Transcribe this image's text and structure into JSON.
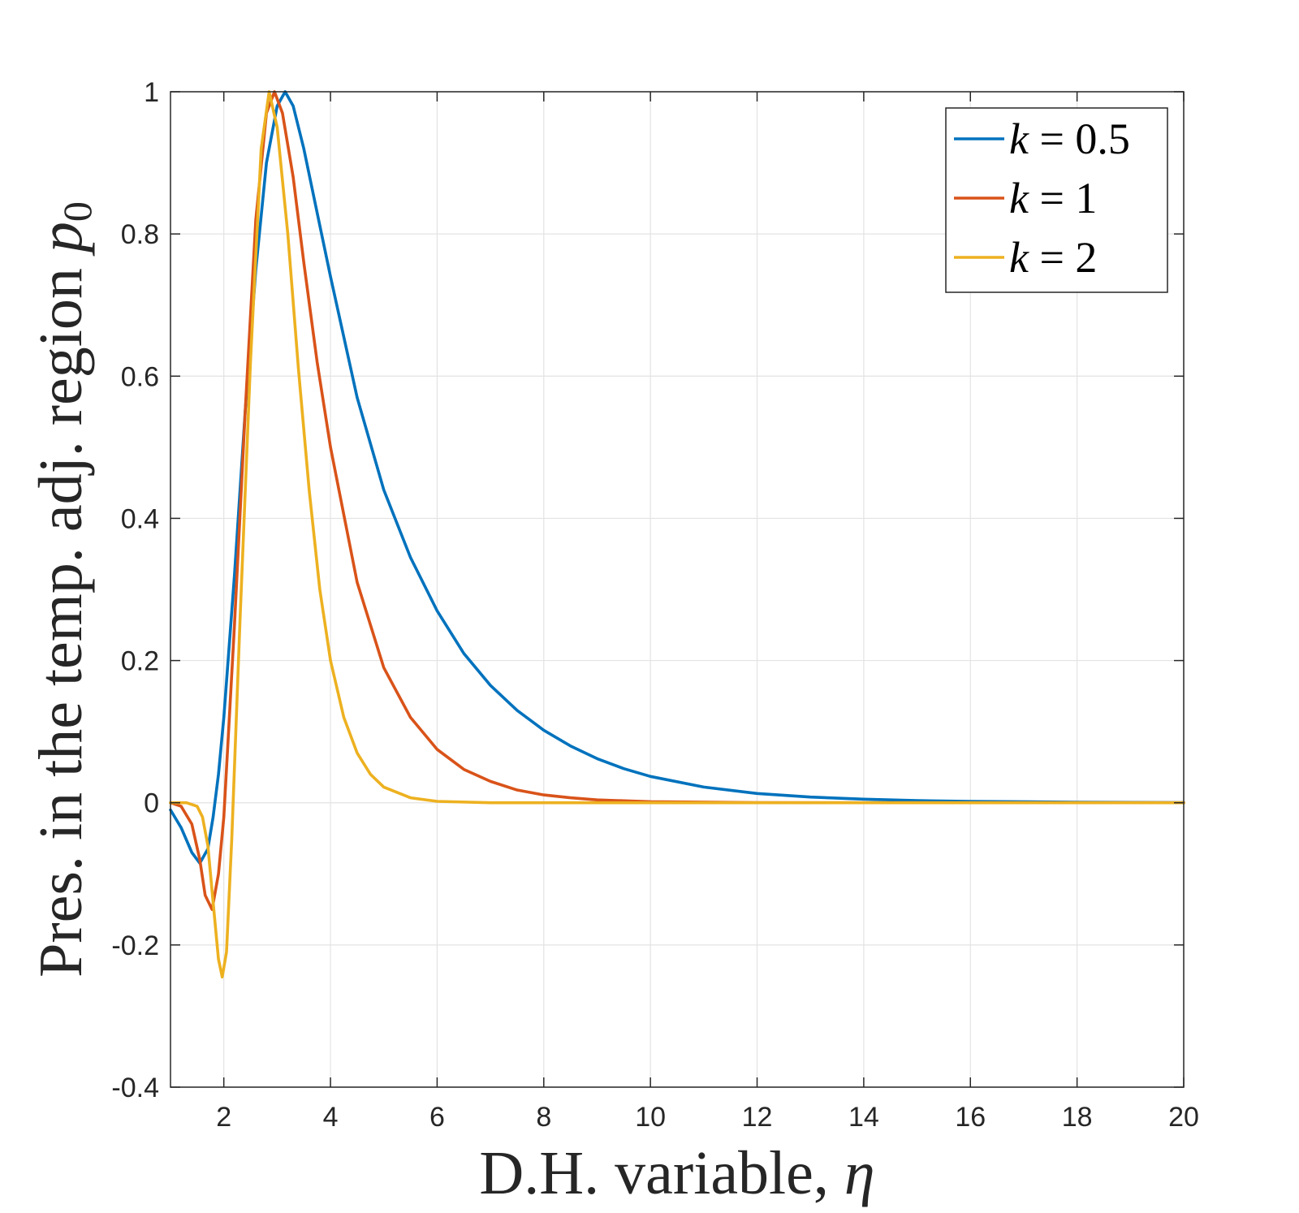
{
  "chart_data": {
    "type": "line",
    "title": "",
    "xlabel_text": "D.H. variable, ",
    "xlabel_symbol": "η",
    "ylabel_text": "Pres. in the temp. adj. region ",
    "ylabel_symbol": "p",
    "ylabel_subscript": "0",
    "xlim": [
      1,
      20
    ],
    "ylim": [
      -0.4,
      1
    ],
    "xticks": [
      2,
      4,
      6,
      8,
      10,
      12,
      14,
      16,
      18,
      20
    ],
    "xtick_labels": [
      "2",
      "4",
      "6",
      "8",
      "10",
      "12",
      "14",
      "16",
      "18",
      "20"
    ],
    "yticks": [
      -0.4,
      -0.2,
      0,
      0.2,
      0.4,
      0.6,
      0.8,
      1
    ],
    "ytick_labels": [
      "-0.4",
      "-0.2",
      "0",
      "0.2",
      "0.4",
      "0.6",
      "0.8",
      "1"
    ],
    "grid": true,
    "legend_position": "top-right",
    "series": [
      {
        "name": "k = 0.5",
        "legend_var": "k",
        "legend_rest": " = 0.5",
        "color": "#0072BD",
        "points": [
          [
            1.0,
            -0.01
          ],
          [
            1.2,
            -0.035
          ],
          [
            1.4,
            -0.07
          ],
          [
            1.55,
            -0.085
          ],
          [
            1.7,
            -0.065
          ],
          [
            1.8,
            -0.02
          ],
          [
            1.9,
            0.04
          ],
          [
            2.0,
            0.12
          ],
          [
            2.2,
            0.32
          ],
          [
            2.4,
            0.55
          ],
          [
            2.6,
            0.75
          ],
          [
            2.8,
            0.9
          ],
          [
            3.0,
            0.98
          ],
          [
            3.15,
            1.0
          ],
          [
            3.3,
            0.98
          ],
          [
            3.5,
            0.92
          ],
          [
            3.75,
            0.83
          ],
          [
            4.0,
            0.74
          ],
          [
            4.5,
            0.57
          ],
          [
            5.0,
            0.44
          ],
          [
            5.5,
            0.345
          ],
          [
            6.0,
            0.27
          ],
          [
            6.5,
            0.21
          ],
          [
            7.0,
            0.165
          ],
          [
            7.5,
            0.13
          ],
          [
            8.0,
            0.102
          ],
          [
            8.5,
            0.08
          ],
          [
            9.0,
            0.062
          ],
          [
            9.5,
            0.048
          ],
          [
            10.0,
            0.037
          ],
          [
            11.0,
            0.022
          ],
          [
            12.0,
            0.013
          ],
          [
            13.0,
            0.008
          ],
          [
            14.0,
            0.005
          ],
          [
            15.0,
            0.003
          ],
          [
            16.0,
            0.002
          ],
          [
            18.0,
            0.0008
          ],
          [
            20.0,
            0.0003
          ]
        ]
      },
      {
        "name": "k = 1",
        "legend_var": "k",
        "legend_rest": " = 1",
        "color": "#D95319",
        "points": [
          [
            1.0,
            0.0
          ],
          [
            1.2,
            -0.005
          ],
          [
            1.4,
            -0.03
          ],
          [
            1.55,
            -0.08
          ],
          [
            1.65,
            -0.13
          ],
          [
            1.78,
            -0.15
          ],
          [
            1.9,
            -0.1
          ],
          [
            2.0,
            -0.02
          ],
          [
            2.2,
            0.25
          ],
          [
            2.4,
            0.55
          ],
          [
            2.6,
            0.82
          ],
          [
            2.8,
            0.97
          ],
          [
            2.95,
            1.0
          ],
          [
            3.1,
            0.97
          ],
          [
            3.3,
            0.88
          ],
          [
            3.5,
            0.76
          ],
          [
            3.75,
            0.62
          ],
          [
            4.0,
            0.5
          ],
          [
            4.5,
            0.31
          ],
          [
            5.0,
            0.19
          ],
          [
            5.5,
            0.12
          ],
          [
            6.0,
            0.075
          ],
          [
            6.5,
            0.047
          ],
          [
            7.0,
            0.03
          ],
          [
            7.5,
            0.018
          ],
          [
            8.0,
            0.011
          ],
          [
            8.5,
            0.007
          ],
          [
            9.0,
            0.004
          ],
          [
            10.0,
            0.0015
          ],
          [
            12.0,
            0.0002
          ],
          [
            14.0,
            0.0
          ],
          [
            20.0,
            0.0
          ]
        ]
      },
      {
        "name": "k = 2",
        "legend_var": "k",
        "legend_rest": " = 2",
        "color": "#EDB120",
        "points": [
          [
            1.0,
            0.0
          ],
          [
            1.3,
            0.0
          ],
          [
            1.5,
            -0.005
          ],
          [
            1.6,
            -0.02
          ],
          [
            1.7,
            -0.06
          ],
          [
            1.8,
            -0.14
          ],
          [
            1.9,
            -0.22
          ],
          [
            1.97,
            -0.245
          ],
          [
            2.05,
            -0.21
          ],
          [
            2.15,
            -0.05
          ],
          [
            2.3,
            0.25
          ],
          [
            2.5,
            0.62
          ],
          [
            2.7,
            0.92
          ],
          [
            2.85,
            1.0
          ],
          [
            3.0,
            0.95
          ],
          [
            3.2,
            0.8
          ],
          [
            3.4,
            0.61
          ],
          [
            3.6,
            0.44
          ],
          [
            3.8,
            0.3
          ],
          [
            4.0,
            0.2
          ],
          [
            4.25,
            0.12
          ],
          [
            4.5,
            0.07
          ],
          [
            4.75,
            0.04
          ],
          [
            5.0,
            0.022
          ],
          [
            5.5,
            0.007
          ],
          [
            6.0,
            0.002
          ],
          [
            7.0,
            0.0
          ],
          [
            20.0,
            0.0
          ]
        ]
      }
    ]
  }
}
